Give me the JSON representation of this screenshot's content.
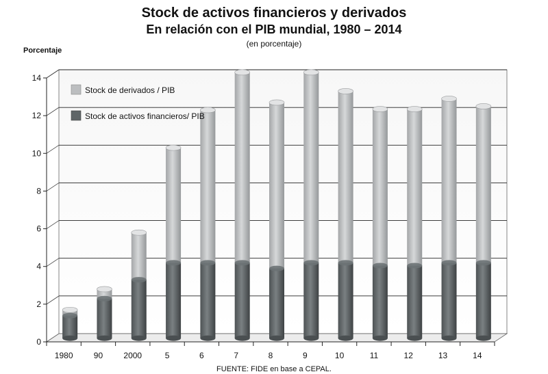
{
  "chart_data": {
    "type": "bar",
    "title": "Stock de activos financieros y derivados",
    "subtitle": "En relación con el PIB mundial, 1980 – 2014",
    "subtitle2": "(en porcentaje)",
    "ylabel": "Porcentaje",
    "source": "FUENTE: FIDE en base a CEPAL.",
    "categories": [
      "1980",
      "90",
      "2000",
      "5",
      "6",
      "7",
      "8",
      "9",
      "10",
      "11",
      "12",
      "13",
      "14"
    ],
    "stacked": true,
    "series": [
      {
        "name": "Stock de activos financieros/ PIB",
        "color": "#5f6567",
        "values": [
          1.2,
          2.1,
          3.1,
          4.0,
          4.0,
          4.0,
          3.7,
          4.0,
          4.0,
          3.85,
          3.85,
          4.0,
          4.0
        ]
      },
      {
        "name": "Stock de derivados / PIB",
        "color": "#bcbec0",
        "values": [
          0.3,
          0.5,
          2.5,
          6.1,
          8.1,
          10.1,
          8.8,
          10.1,
          9.1,
          8.3,
          8.3,
          8.7,
          8.3
        ]
      }
    ],
    "yticks": [
      0,
      2,
      4,
      6,
      8,
      10,
      12,
      14
    ],
    "ylim": [
      0,
      14
    ],
    "grid": true,
    "legend_position": "top-left"
  }
}
